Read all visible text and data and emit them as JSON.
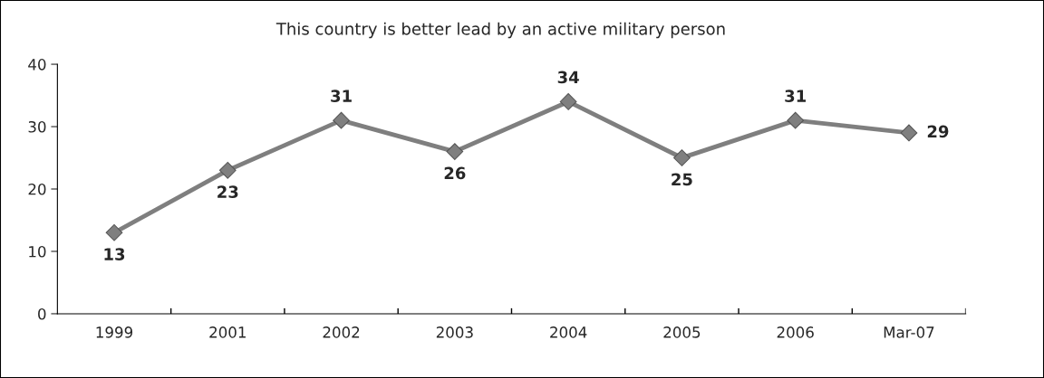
{
  "chart_data": {
    "type": "line",
    "title": "This country is better lead by an active military person",
    "categories": [
      "1999",
      "2001",
      "2002",
      "2003",
      "2004",
      "2005",
      "2006",
      "Mar-07"
    ],
    "series": [
      {
        "color": "#7f7f7f",
        "values": [
          13,
          23,
          31,
          26,
          34,
          25,
          31,
          29
        ]
      }
    ],
    "ylim": [
      0,
      40
    ],
    "yticks": [
      0,
      10,
      20,
      30,
      40
    ],
    "grid": false,
    "marker": "diamond",
    "line_style": "solid",
    "data_labels": true
  }
}
